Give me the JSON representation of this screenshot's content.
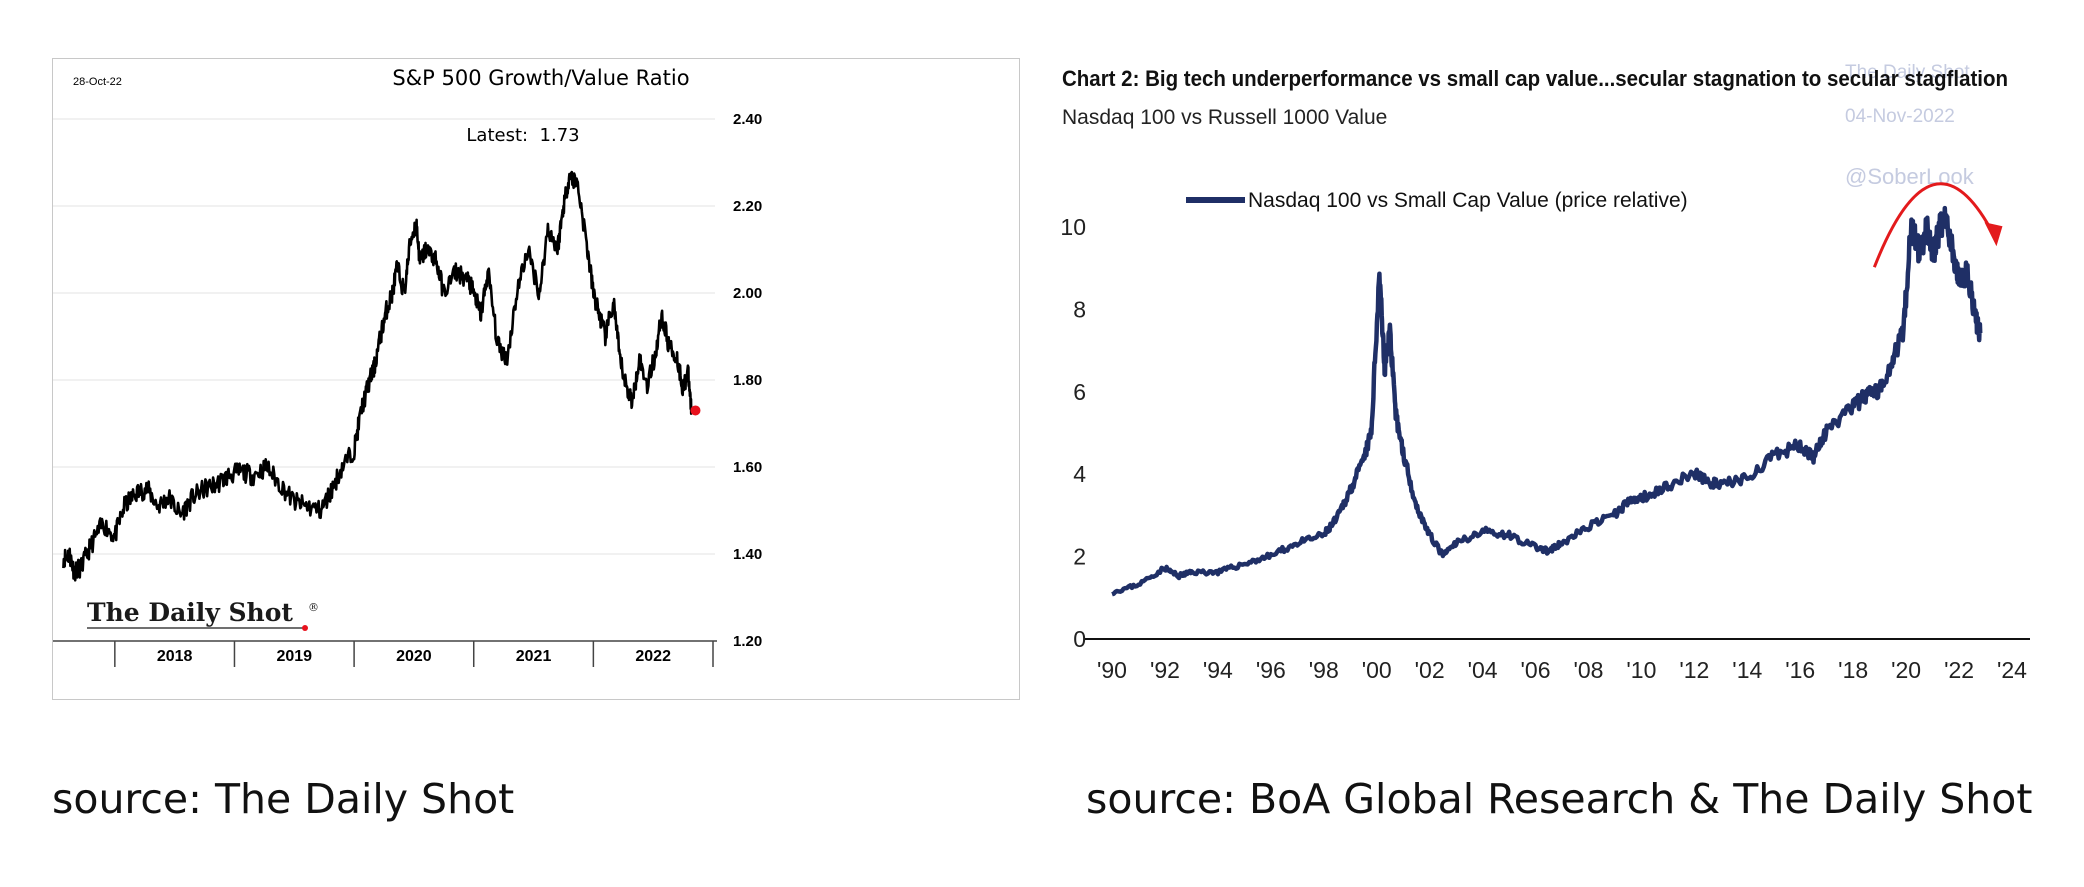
{
  "chart_data": [
    {
      "type": "line",
      "title": "S&P 500 Growth/Value Ratio",
      "date_label": "28-Oct-22",
      "annotation": "Latest:  1.73",
      "logo_text": "The Daily Shot",
      "logo_mark": "®",
      "xlabel": "",
      "ylabel": "",
      "ylim": [
        1.2,
        2.4
      ],
      "yticks": [
        "1.20",
        "1.40",
        "1.60",
        "1.80",
        "2.00",
        "2.20",
        "2.40"
      ],
      "xlim": [
        2017.55,
        2023.0
      ],
      "year_labels": [
        "2018",
        "2019",
        "2020",
        "2021",
        "2022"
      ],
      "year_boundaries": [
        2018,
        2019,
        2020,
        2021,
        2022,
        2023
      ],
      "grid": true,
      "line_color": "#000000",
      "marker_color": "#e8121d",
      "latest_value": 1.73,
      "series": [
        {
          "name": "S&P 500 Growth/Value Ratio",
          "x": [
            2017.57,
            2017.62,
            2017.66,
            2017.72,
            2017.8,
            2017.9,
            2018.0,
            2018.08,
            2018.18,
            2018.27,
            2018.36,
            2018.45,
            2018.55,
            2018.65,
            2018.75,
            2018.85,
            2018.95,
            2019.05,
            2019.15,
            2019.27,
            2019.38,
            2019.5,
            2019.6,
            2019.72,
            2019.8,
            2019.9,
            2020.0,
            2020.06,
            2020.12,
            2020.17,
            2020.22,
            2020.27,
            2020.32,
            2020.36,
            2020.42,
            2020.47,
            2020.52,
            2020.55,
            2020.6,
            2020.68,
            2020.75,
            2020.85,
            2020.95,
            2021.0,
            2021.06,
            2021.12,
            2021.2,
            2021.28,
            2021.36,
            2021.45,
            2021.55,
            2021.62,
            2021.7,
            2021.75,
            2021.8,
            2021.87,
            2021.95,
            2022.0,
            2022.05,
            2022.1,
            2022.17,
            2022.22,
            2022.28,
            2022.33,
            2022.38,
            2022.45,
            2022.52,
            2022.57,
            2022.63,
            2022.7,
            2022.75,
            2022.79,
            2022.82
          ],
          "y": [
            1.39,
            1.4,
            1.36,
            1.37,
            1.42,
            1.47,
            1.44,
            1.51,
            1.54,
            1.55,
            1.51,
            1.53,
            1.49,
            1.53,
            1.55,
            1.56,
            1.58,
            1.59,
            1.58,
            1.6,
            1.56,
            1.52,
            1.51,
            1.5,
            1.54,
            1.6,
            1.64,
            1.73,
            1.79,
            1.83,
            1.9,
            1.96,
            2.0,
            2.06,
            2.0,
            2.12,
            2.16,
            2.07,
            2.1,
            2.08,
            2.0,
            2.05,
            2.03,
            2.0,
            1.95,
            2.05,
            1.88,
            1.85,
            2.0,
            2.1,
            2.0,
            2.15,
            2.1,
            2.2,
            2.27,
            2.25,
            2.1,
            2.0,
            1.95,
            1.9,
            1.98,
            1.85,
            1.78,
            1.75,
            1.85,
            1.79,
            1.86,
            1.95,
            1.88,
            1.85,
            1.78,
            1.82,
            1.73
          ]
        }
      ]
    },
    {
      "type": "line",
      "title": "Chart 2: Big tech underperformance vs small cap value...secular stagnation to secular stagflation",
      "subtitle": "Nasdaq 100 vs Russell 1000 Value",
      "watermark_lines": [
        "The Daily Shot",
        "04-Nov-2022",
        "@SoberLook"
      ],
      "legend": [
        "Nasdaq 100 vs Small Cap Value (price relative)"
      ],
      "legend_position": "top-left",
      "xlabel": "",
      "ylabel": "",
      "xlim": [
        1990,
        2024
      ],
      "ylim": [
        0,
        10
      ],
      "yticks": [
        "0",
        "2",
        "4",
        "6",
        "8",
        "10"
      ],
      "xticks": [
        "'90",
        "'92",
        "'94",
        "'96",
        "'98",
        "'00",
        "'02",
        "'04",
        "'06",
        "'08",
        "'10",
        "'12",
        "'14",
        "'16",
        "'18",
        "'20",
        "'22",
        "'24"
      ],
      "grid": false,
      "line_color": "#1f2f66",
      "arrow_color": "#e31a1c",
      "series": [
        {
          "name": "Nasdaq 100 vs Small Cap Value (price relative)",
          "x": [
            1990,
            1991,
            1992,
            1992.5,
            1993,
            1994,
            1995,
            1996,
            1997,
            1998,
            1998.5,
            1999,
            1999.5,
            1999.8,
            2000.1,
            2000.3,
            2000.5,
            2000.7,
            2001,
            2001.5,
            2002,
            2002.5,
            2003,
            2004,
            2005,
            2006,
            2006.5,
            2007,
            2008,
            2009,
            2009.5,
            2010,
            2011,
            2012,
            2012.5,
            2013,
            2014,
            2015,
            2016,
            2016.5,
            2017,
            2018,
            2018.5,
            2019,
            2019.5,
            2019.9,
            2020.2,
            2020.5,
            2020.8,
            2021,
            2021.2,
            2021.5,
            2021.8,
            2022,
            2022.3,
            2022.6,
            2022.8
          ],
          "y": [
            1.1,
            1.3,
            1.7,
            1.5,
            1.6,
            1.6,
            1.8,
            2.0,
            2.3,
            2.5,
            2.9,
            3.6,
            4.3,
            5.0,
            8.9,
            6.5,
            7.5,
            5.5,
            4.5,
            3.2,
            2.5,
            2.0,
            2.3,
            2.6,
            2.5,
            2.2,
            2.1,
            2.3,
            2.7,
            3.0,
            3.3,
            3.4,
            3.7,
            4.0,
            3.8,
            3.7,
            3.9,
            4.4,
            4.7,
            4.4,
            5.0,
            5.6,
            5.9,
            6.0,
            6.8,
            7.5,
            10.1,
            9.3,
            10.0,
            9.2,
            9.8,
            10.3,
            9.2,
            8.6,
            8.9,
            7.8,
            7.4
          ]
        }
      ]
    }
  ],
  "captions": {
    "left": "source: The Daily Shot",
    "right": "source: BoA Global Research & The Daily Shot"
  }
}
